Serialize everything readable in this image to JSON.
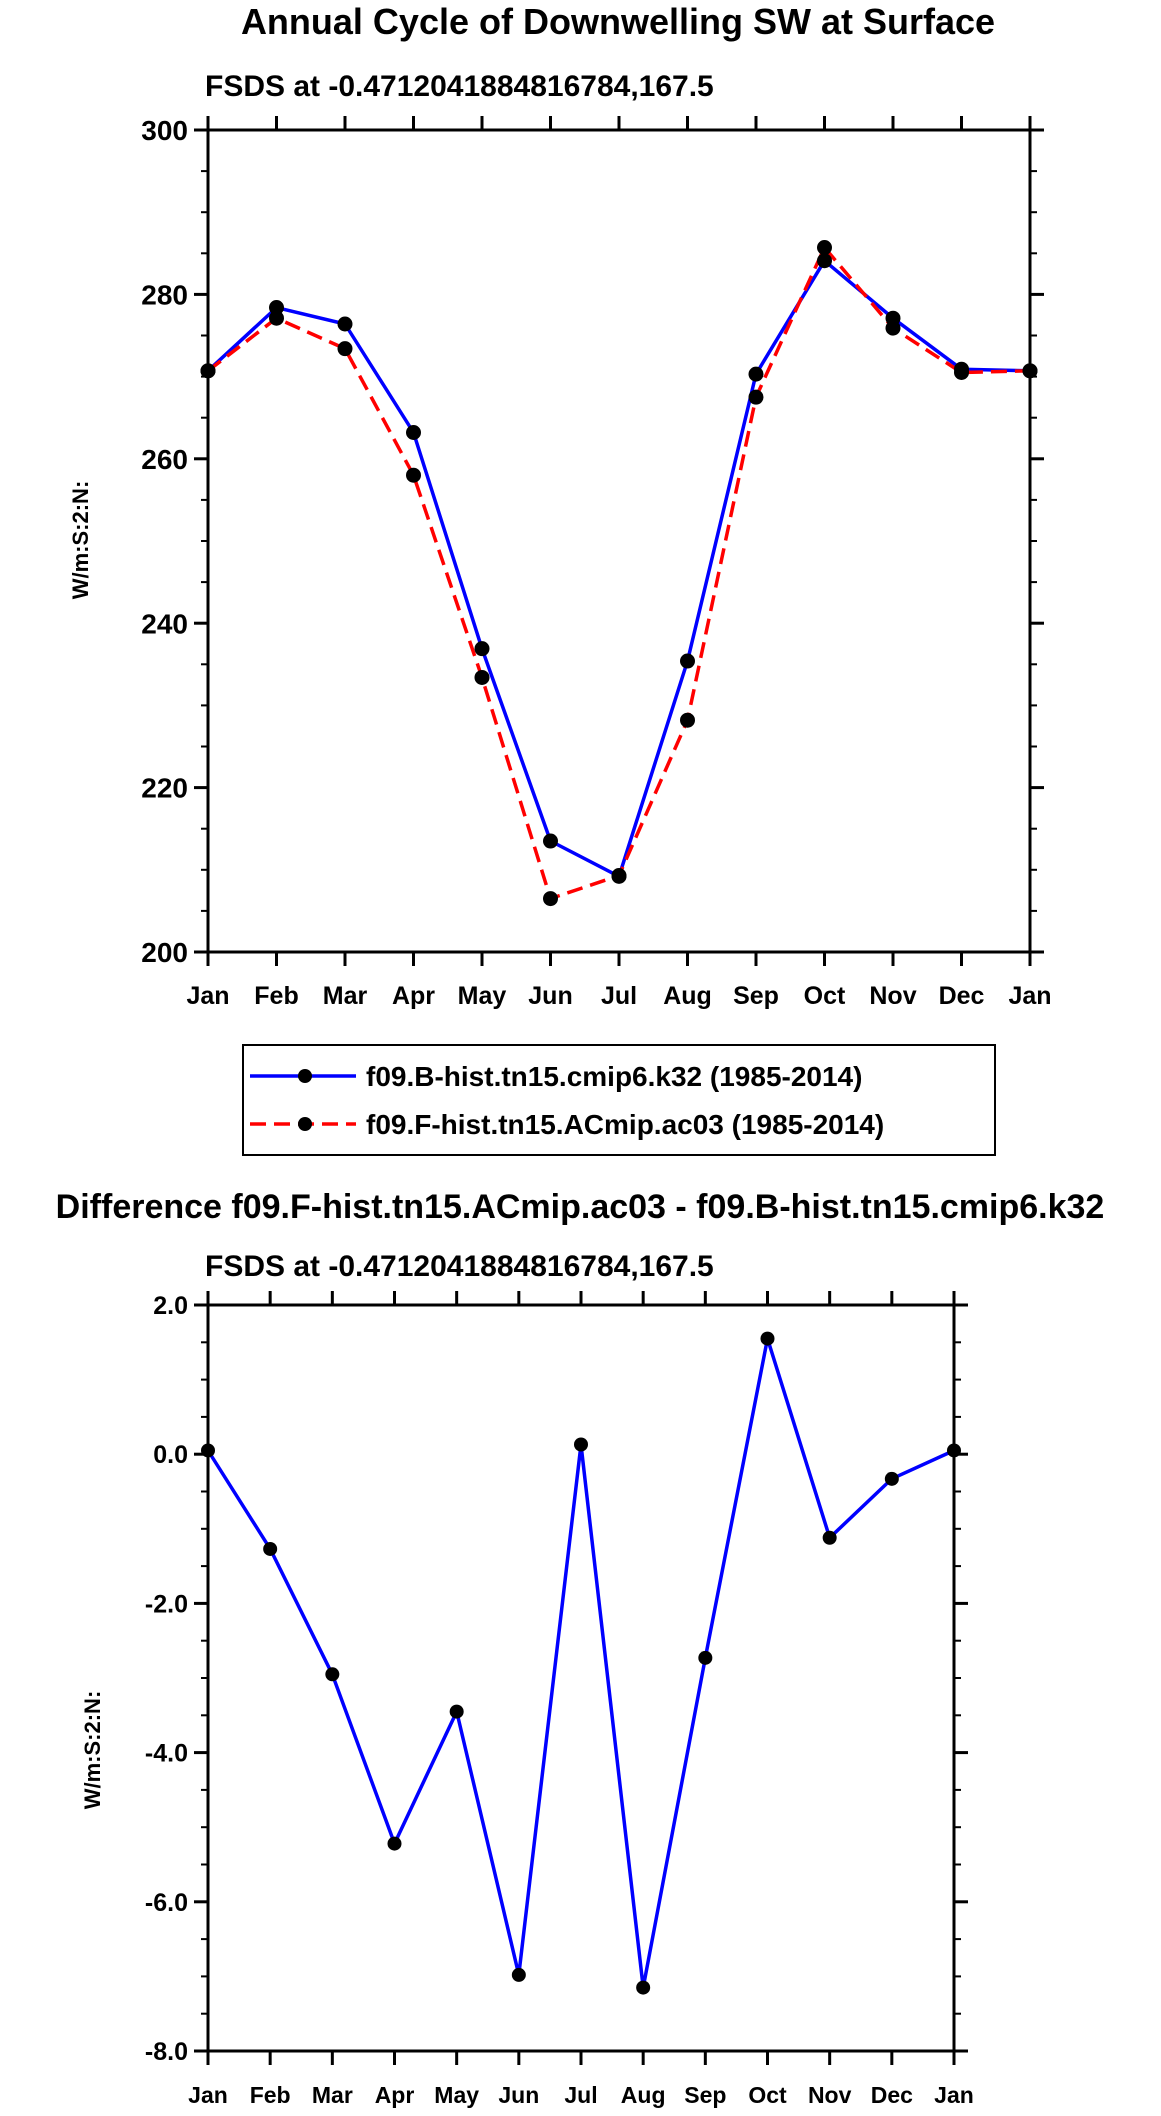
{
  "chart_data": [
    {
      "type": "line",
      "title": "Annual Cycle of Downwelling SW at Surface",
      "subtitle": "FSDS at -0.4712041884816784,167.5",
      "ylabel": "W/m:S:2:N:",
      "xlabel": "",
      "ylim": [
        200,
        300
      ],
      "yticks": [
        "200",
        "220",
        "240",
        "260",
        "280",
        "300"
      ],
      "ytick_values": [
        200,
        220,
        240,
        260,
        280,
        300
      ],
      "ytick_minor_step": 5,
      "categories": [
        "Jan",
        "Feb",
        "Mar",
        "Apr",
        "May",
        "Jun",
        "Jul",
        "Aug",
        "Sep",
        "Oct",
        "Nov",
        "Dec",
        "Jan"
      ],
      "series": [
        {
          "name": "f09.B-hist.tn15.cmip6.k32 (1985-2014)",
          "color": "#0000ff",
          "dash": "solid",
          "values": [
            270.7,
            278.4,
            276.4,
            263.2,
            236.9,
            213.5,
            209.2,
            235.4,
            270.3,
            284.1,
            277.1,
            270.9,
            270.7
          ]
        },
        {
          "name": "f09.F-hist.tn15.ACmip.ac03 (1985-2014)",
          "color": "#ff0000",
          "dash": "dashed",
          "values": [
            270.7,
            277.1,
            273.4,
            258.0,
            233.4,
            206.5,
            209.3,
            228.2,
            267.5,
            285.7,
            275.9,
            270.5,
            270.7
          ]
        }
      ],
      "legend": "bottom"
    },
    {
      "type": "line",
      "title": "Difference f09.F-hist.tn15.ACmip.ac03 - f09.B-hist.tn15.cmip6.k32",
      "subtitle": "FSDS at -0.4712041884816784,167.5",
      "ylabel": "W/m:S:2:N:",
      "xlabel": "",
      "ylim": [
        -8.0,
        2.0
      ],
      "yticks": [
        "-8.0",
        "-6.0",
        "-4.0",
        "-2.0",
        "0.0",
        "2.0"
      ],
      "ytick_values": [
        -8,
        -6,
        -4,
        -2,
        0,
        2
      ],
      "ytick_minor_step": 0.5,
      "categories": [
        "Jan",
        "Feb",
        "Mar",
        "Apr",
        "May",
        "Jun",
        "Jul",
        "Aug",
        "Sep",
        "Oct",
        "Nov",
        "Dec",
        "Jan"
      ],
      "series": [
        {
          "name": "Difference",
          "color": "#0000ff",
          "dash": "solid",
          "values": [
            0.05,
            -1.27,
            -2.95,
            -5.22,
            -3.45,
            -6.98,
            0.13,
            -7.15,
            -2.73,
            1.55,
            -1.12,
            -0.33,
            0.05
          ]
        }
      ]
    }
  ]
}
